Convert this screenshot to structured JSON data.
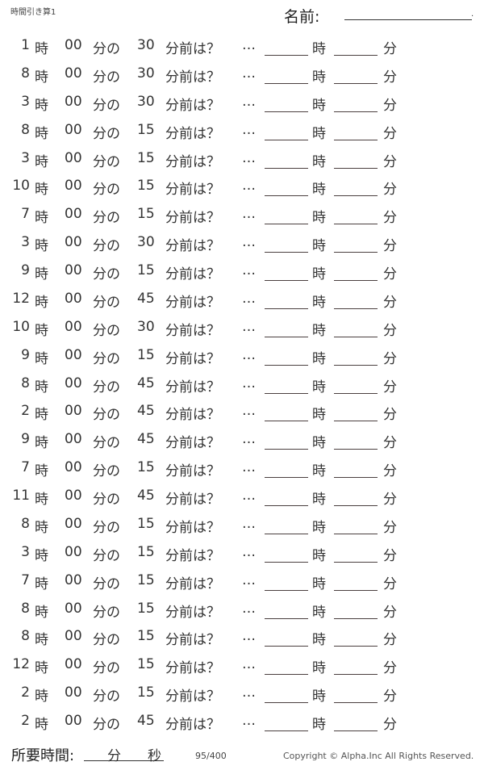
{
  "header": {
    "title": "時間引き算1",
    "name_label": "名前:",
    "name_end": "."
  },
  "labels": {
    "hour": "時",
    "zero": "00",
    "min_no": "分の",
    "before": "分前は？",
    "ellipsis": "…",
    "ans_hour": "時",
    "ans_min": "分"
  },
  "problems": [
    {
      "hour": "1",
      "minus": "30"
    },
    {
      "hour": "8",
      "minus": "30"
    },
    {
      "hour": "3",
      "minus": "30"
    },
    {
      "hour": "8",
      "minus": "15"
    },
    {
      "hour": "3",
      "minus": "15"
    },
    {
      "hour": "10",
      "minus": "15"
    },
    {
      "hour": "7",
      "minus": "15"
    },
    {
      "hour": "3",
      "minus": "30"
    },
    {
      "hour": "9",
      "minus": "15"
    },
    {
      "hour": "12",
      "minus": "45"
    },
    {
      "hour": "10",
      "minus": "30"
    },
    {
      "hour": "9",
      "minus": "15"
    },
    {
      "hour": "8",
      "minus": "45"
    },
    {
      "hour": "2",
      "minus": "45"
    },
    {
      "hour": "9",
      "minus": "45"
    },
    {
      "hour": "7",
      "minus": "15"
    },
    {
      "hour": "11",
      "minus": "45"
    },
    {
      "hour": "8",
      "minus": "15"
    },
    {
      "hour": "3",
      "minus": "15"
    },
    {
      "hour": "7",
      "minus": "15"
    },
    {
      "hour": "8",
      "minus": "15"
    },
    {
      "hour": "8",
      "minus": "15"
    },
    {
      "hour": "12",
      "minus": "15"
    },
    {
      "hour": "2",
      "minus": "15"
    },
    {
      "hour": "2",
      "minus": "45"
    }
  ],
  "footer": {
    "time_label": "所要時間:",
    "min": "分",
    "sec": "秒",
    "page": "95/400",
    "copyright": "Copyright ©  Alpha.Inc All Rights Reserved."
  }
}
